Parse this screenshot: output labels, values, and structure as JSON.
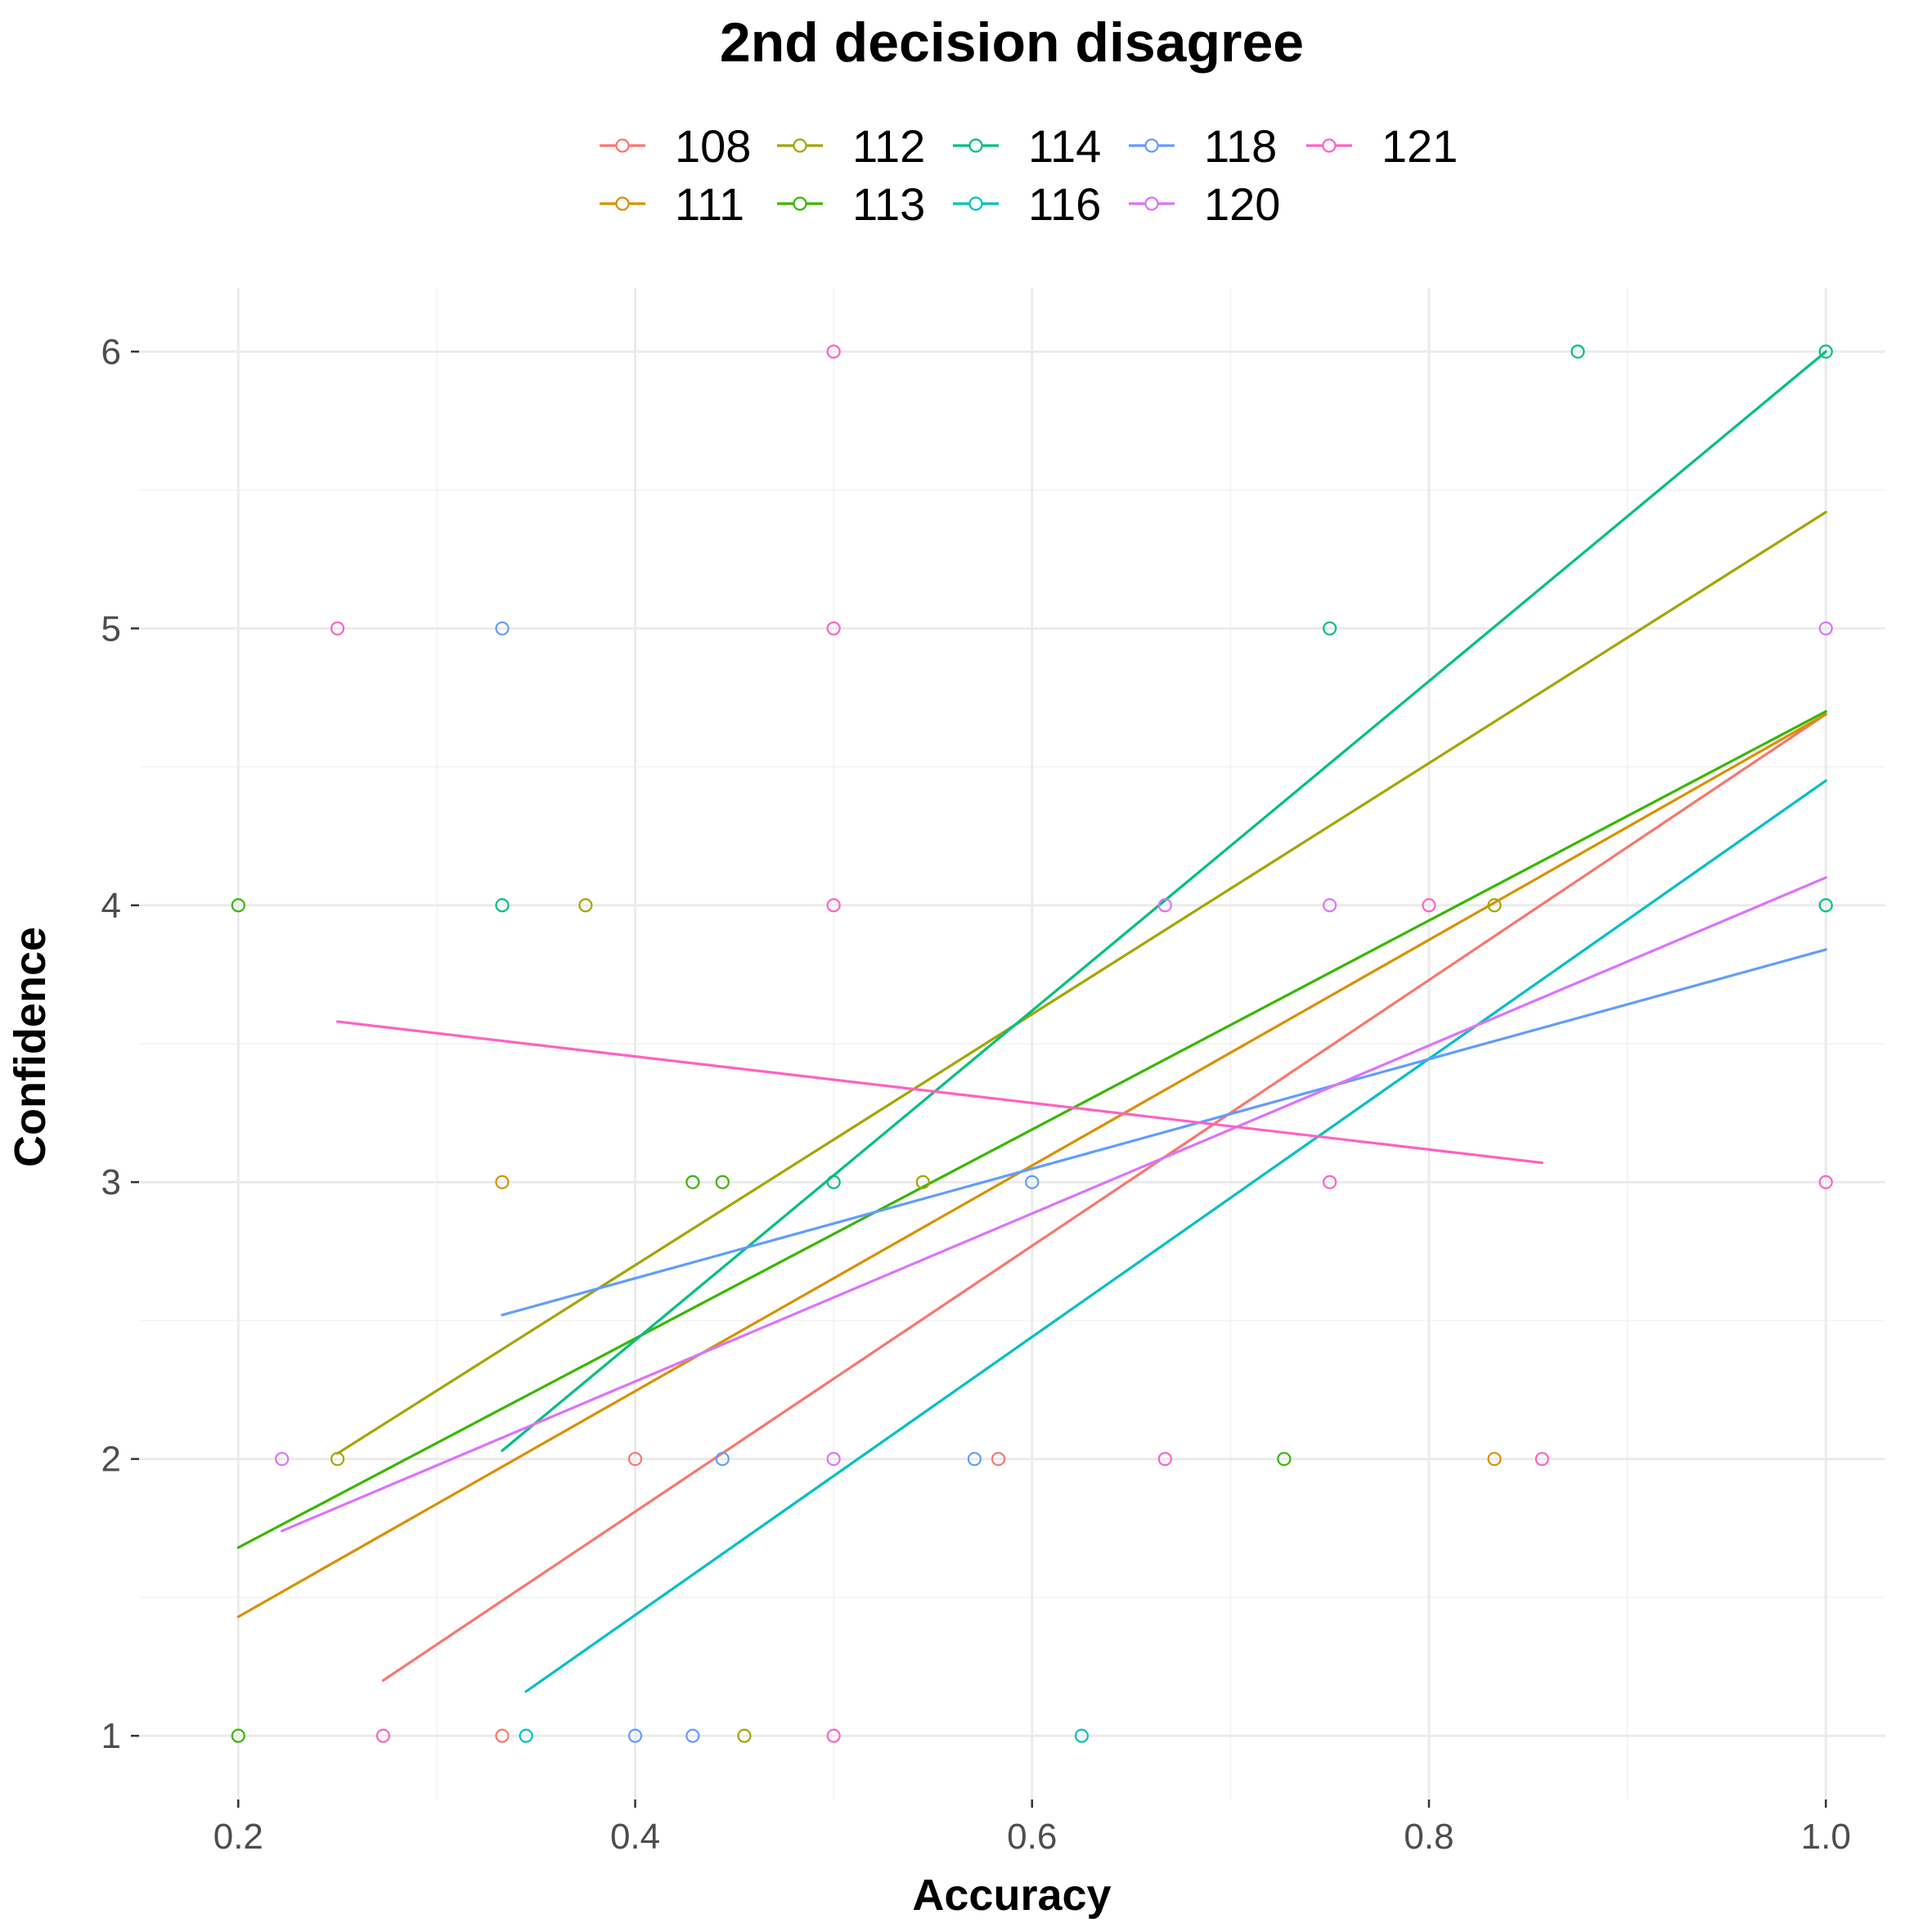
{
  "chart_data": {
    "type": "scatter",
    "title": "2nd decision disagree",
    "xlabel": "Accuracy",
    "ylabel": "Confidence",
    "xlim": [
      0.15,
      1.03
    ],
    "ylim": [
      0.77,
      6.23
    ],
    "x_ticks": [
      "0.2",
      "0.4",
      "0.6",
      "0.8",
      "1.0"
    ],
    "y_ticks": [
      "1",
      "2",
      "3",
      "4",
      "5",
      "6"
    ],
    "grid": true,
    "legend_position": "top",
    "series": [
      {
        "name": "108",
        "color": "#F8766D",
        "points": [
          [
            0.333,
            1
          ],
          [
            0.4,
            2
          ],
          [
            0.583,
            2
          ]
        ],
        "fit": [
          [
            0.273,
            1.2
          ],
          [
            1.0,
            4.69
          ]
        ]
      },
      {
        "name": "111",
        "color": "#D89000",
        "points": [
          [
            0.333,
            3
          ],
          [
            0.833,
            2
          ]
        ],
        "fit": [
          [
            0.2,
            1.43
          ],
          [
            1.0,
            4.69
          ]
        ]
      },
      {
        "name": "112",
        "color": "#A3A500",
        "points": [
          [
            0.25,
            2
          ],
          [
            0.375,
            4
          ],
          [
            0.455,
            1
          ],
          [
            0.545,
            3
          ],
          [
            0.833,
            4
          ]
        ],
        "fit": [
          [
            0.25,
            2.02
          ],
          [
            1.0,
            5.42
          ]
        ]
      },
      {
        "name": "113",
        "color": "#39B600",
        "points": [
          [
            0.2,
            1
          ],
          [
            0.2,
            4
          ],
          [
            0.429,
            3
          ],
          [
            0.444,
            3
          ],
          [
            0.727,
            2
          ]
        ],
        "fit": [
          [
            0.2,
            1.68
          ],
          [
            1.0,
            4.7
          ]
        ]
      },
      {
        "name": "114",
        "color": "#00BF7D",
        "points": [
          [
            0.333,
            4
          ],
          [
            0.5,
            3
          ],
          [
            0.75,
            5
          ],
          [
            0.875,
            6
          ],
          [
            1.0,
            6
          ],
          [
            1.0,
            4
          ]
        ],
        "fit": [
          [
            0.333,
            2.03
          ],
          [
            1.0,
            6.0
          ]
        ]
      },
      {
        "name": "116",
        "color": "#00BFC4",
        "points": [
          [
            0.345,
            1
          ],
          [
            0.625,
            1
          ]
        ],
        "fit": [
          [
            0.345,
            1.16
          ],
          [
            1.0,
            4.45
          ]
        ]
      },
      {
        "name": "118",
        "color": "#619CFF",
        "points": [
          [
            0.333,
            5
          ],
          [
            0.4,
            1
          ],
          [
            0.429,
            1
          ],
          [
            0.444,
            2
          ],
          [
            0.571,
            2
          ],
          [
            0.6,
            3
          ]
        ],
        "fit": [
          [
            0.333,
            2.52
          ],
          [
            1.0,
            3.84
          ]
        ]
      },
      {
        "name": "120",
        "color": "#DB72FB",
        "points": [
          [
            0.222,
            2
          ],
          [
            0.5,
            2
          ],
          [
            0.667,
            4
          ],
          [
            0.75,
            4
          ],
          [
            1.0,
            5
          ]
        ],
        "fit": [
          [
            0.222,
            1.74
          ],
          [
            1.0,
            4.1
          ]
        ]
      },
      {
        "name": "121",
        "color": "#FF61C3",
        "points": [
          [
            0.25,
            5
          ],
          [
            0.273,
            1
          ],
          [
            0.5,
            6
          ],
          [
            0.5,
            5
          ],
          [
            0.5,
            4
          ],
          [
            0.5,
            1
          ],
          [
            0.667,
            2
          ],
          [
            0.75,
            3
          ],
          [
            0.8,
            4
          ],
          [
            0.857,
            2
          ],
          [
            1.0,
            3
          ]
        ],
        "fit": [
          [
            0.25,
            3.58
          ],
          [
            0.857,
            3.07
          ]
        ]
      }
    ]
  }
}
